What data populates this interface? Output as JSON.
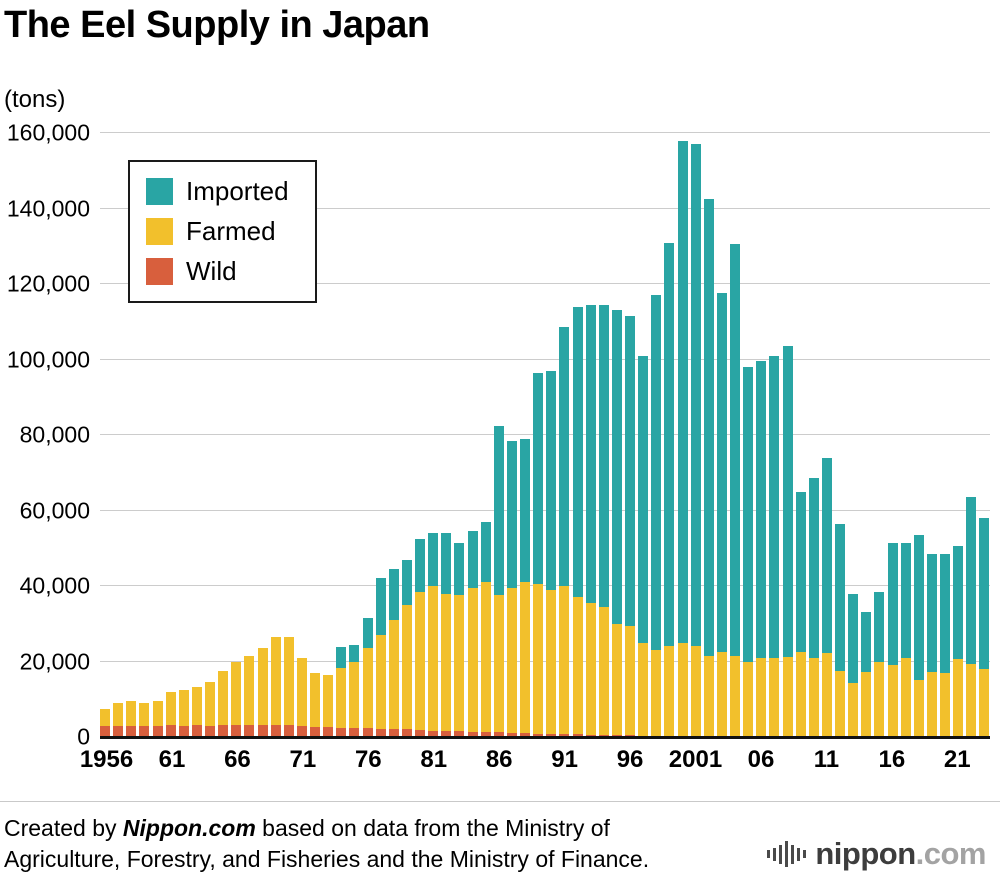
{
  "header": {
    "title": "The Eel Supply in Japan",
    "unit_label": "(tons)"
  },
  "chart_data": {
    "type": "bar",
    "stacked": true,
    "title": "The Eel Supply in Japan",
    "ylabel": "(tons)",
    "xlabel": "",
    "grid": true,
    "legend_position": "top-left-inside-plot",
    "ylim": [
      0,
      160000
    ],
    "y_ticks": [
      0,
      20000,
      40000,
      60000,
      80000,
      100000,
      120000,
      140000,
      160000
    ],
    "y_tick_labels": [
      "0",
      "20,000",
      "40,000",
      "60,000",
      "80,000",
      "100,000",
      "120,000",
      "140,000",
      "160,000"
    ],
    "x_ticks": [
      {
        "i": 0,
        "label": "1956"
      },
      {
        "i": 5,
        "label": "61"
      },
      {
        "i": 10,
        "label": "66"
      },
      {
        "i": 15,
        "label": "71"
      },
      {
        "i": 20,
        "label": "76"
      },
      {
        "i": 25,
        "label": "81"
      },
      {
        "i": 30,
        "label": "86"
      },
      {
        "i": 35,
        "label": "91"
      },
      {
        "i": 40,
        "label": "96"
      },
      {
        "i": 45,
        "label": "2001"
      },
      {
        "i": 50,
        "label": "06"
      },
      {
        "i": 55,
        "label": "11"
      },
      {
        "i": 60,
        "label": "16"
      },
      {
        "i": 65,
        "label": "21"
      }
    ],
    "years": [
      1956,
      1957,
      1958,
      1959,
      1960,
      1961,
      1962,
      1963,
      1964,
      1965,
      1966,
      1967,
      1968,
      1969,
      1970,
      1971,
      1972,
      1973,
      1974,
      1975,
      1976,
      1977,
      1978,
      1979,
      1980,
      1981,
      1982,
      1983,
      1984,
      1985,
      1986,
      1987,
      1988,
      1989,
      1990,
      1991,
      1992,
      1993,
      1994,
      1995,
      1996,
      1997,
      1998,
      1999,
      2000,
      2001,
      2002,
      2003,
      2004,
      2005,
      2006,
      2007,
      2008,
      2009,
      2010,
      2011,
      2012,
      2013,
      2014,
      2015,
      2016,
      2017,
      2018,
      2019,
      2020,
      2021,
      2022,
      2023
    ],
    "series": [
      {
        "name": "Wild",
        "color": "#D85F3D",
        "values": [
          2800,
          3000,
          3000,
          2900,
          3000,
          3200,
          3000,
          3100,
          3000,
          3200,
          3100,
          3200,
          3300,
          3200,
          3100,
          2800,
          2700,
          2600,
          2500,
          2400,
          2300,
          2200,
          2100,
          2000,
          1900,
          1700,
          1600,
          1500,
          1400,
          1300,
          1200,
          1100,
          1000,
          900,
          800,
          700,
          700,
          600,
          600,
          500,
          500,
          400,
          400,
          300,
          300,
          300,
          300,
          300,
          200,
          200,
          200,
          200,
          200,
          200,
          200,
          200,
          200,
          100,
          100,
          100,
          100,
          100,
          100,
          100,
          100,
          100,
          100,
          100
        ]
      },
      {
        "name": "Farmed",
        "color": "#F2C02C",
        "values": [
          4700,
          6000,
          6500,
          6100,
          6500,
          8800,
          9500,
          10100,
          11500,
          14300,
          16900,
          18300,
          20200,
          23300,
          23400,
          18200,
          14300,
          13700,
          15800,
          17400,
          21200,
          24800,
          28900,
          33000,
          36600,
          38300,
          36400,
          36000,
          38100,
          39700,
          36300,
          38400,
          40000,
          39600,
          38200,
          39300,
          36300,
          34900,
          33900,
          29500,
          29000,
          24600,
          22600,
          23700,
          24700,
          23700,
          21200,
          22200,
          21300,
          19800,
          20800,
          20800,
          20900,
          22300,
          20800,
          22000,
          17300,
          14200,
          17100,
          19900,
          18900,
          20700,
          15100,
          17100,
          16800,
          20600,
          19200,
          18000
        ]
      },
      {
        "name": "Imported",
        "color": "#29A5A4",
        "values": [
          0,
          0,
          0,
          0,
          0,
          0,
          0,
          0,
          0,
          0,
          0,
          0,
          0,
          0,
          0,
          0,
          0,
          0,
          5500,
          4500,
          8000,
          15000,
          13500,
          12000,
          14000,
          14000,
          16000,
          14000,
          15000,
          16000,
          45000,
          39000,
          38000,
          56000,
          58000,
          68500,
          77000,
          79000,
          80000,
          83000,
          82000,
          76000,
          94000,
          107000,
          133000,
          133000,
          121000,
          95000,
          109000,
          78000,
          78500,
          80000,
          82400,
          42500,
          47500,
          51800,
          39000,
          23700,
          15800,
          18500,
          32500,
          30700,
          38300,
          31300,
          31600,
          29800,
          44200,
          39900
        ]
      }
    ],
    "legend_order": [
      "Imported",
      "Farmed",
      "Wild"
    ]
  },
  "footer": {
    "line1_prefix": "Created by ",
    "line1_brand": "Nippon.com",
    "line1_rest": " based on data from the Ministry of",
    "line2": "Agriculture, Forestry, and Fisheries and the Ministry of Finance.",
    "logo_main": "nippon",
    "logo_suffix": ".com"
  }
}
